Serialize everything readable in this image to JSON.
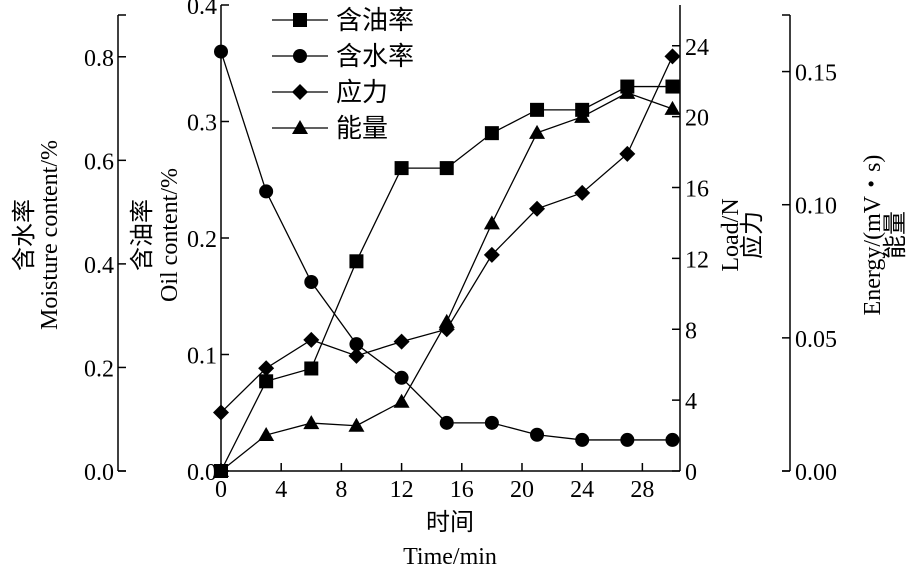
{
  "chart_data": {
    "type": "line",
    "x": [
      0,
      3,
      6,
      9,
      12,
      15,
      18,
      21,
      24,
      27,
      30
    ],
    "xlabel_cn": "时间",
    "xlabel": "Time/min",
    "xlim": [
      0,
      30.5
    ],
    "xticks": [
      0,
      4,
      8,
      12,
      16,
      20,
      24,
      28
    ],
    "axes": {
      "moisture": {
        "label_cn": "含水率",
        "label": "Moisture content/%",
        "ylim": [
          0,
          0.9
        ],
        "ticks": [
          "0.0",
          "0.2",
          "0.4",
          "0.6",
          "0.8"
        ],
        "position": "outer-left"
      },
      "oil": {
        "label_cn": "含油率",
        "label": "Oil content/%",
        "ylim": [
          0,
          0.4
        ],
        "ticks": [
          "0.0",
          "0.1",
          "0.2",
          "0.3",
          "0.4"
        ],
        "position": "left"
      },
      "load": {
        "label_cn": "应力",
        "label": "Load/N",
        "ylim": [
          0,
          26.3
        ],
        "ticks": [
          "0",
          "4",
          "8",
          "12",
          "16",
          "20",
          "24"
        ],
        "position": "right"
      },
      "energy": {
        "label_cn": "能量",
        "label": "Energy/(mV・s)",
        "ylim": [
          0,
          0.175
        ],
        "ticks": [
          "0.00",
          "0.05",
          "0.10",
          "0.15"
        ],
        "position": "outer-right"
      }
    },
    "series": [
      {
        "name": "含油率",
        "axis": "oil",
        "marker": "square",
        "values": [
          0,
          0.077,
          0.088,
          0.18,
          0.26,
          0.26,
          0.29,
          0.31,
          0.31,
          0.33,
          0.33
        ]
      },
      {
        "name": "含水率",
        "axis": "moisture",
        "marker": "circle",
        "values": [
          0.81,
          0.54,
          0.365,
          0.245,
          0.18,
          0.093,
          0.093,
          0.07,
          0.06,
          0.06,
          0.06
        ]
      },
      {
        "name": "应力",
        "axis": "load",
        "marker": "diamond",
        "values": [
          3.3,
          5.8,
          7.4,
          6.5,
          7.3,
          8.0,
          12.2,
          14.8,
          15.7,
          17.9,
          23.4
        ]
      },
      {
        "name": "能量",
        "axis": "energy",
        "marker": "triangle",
        "values": [
          0,
          0.0135,
          0.018,
          0.017,
          0.026,
          0.056,
          0.093,
          0.127,
          0.133,
          0.142,
          0.136
        ]
      }
    ],
    "legend": "top-left",
    "grid": false,
    "colors": {
      "line": "#000000",
      "marker": "#000000"
    }
  }
}
